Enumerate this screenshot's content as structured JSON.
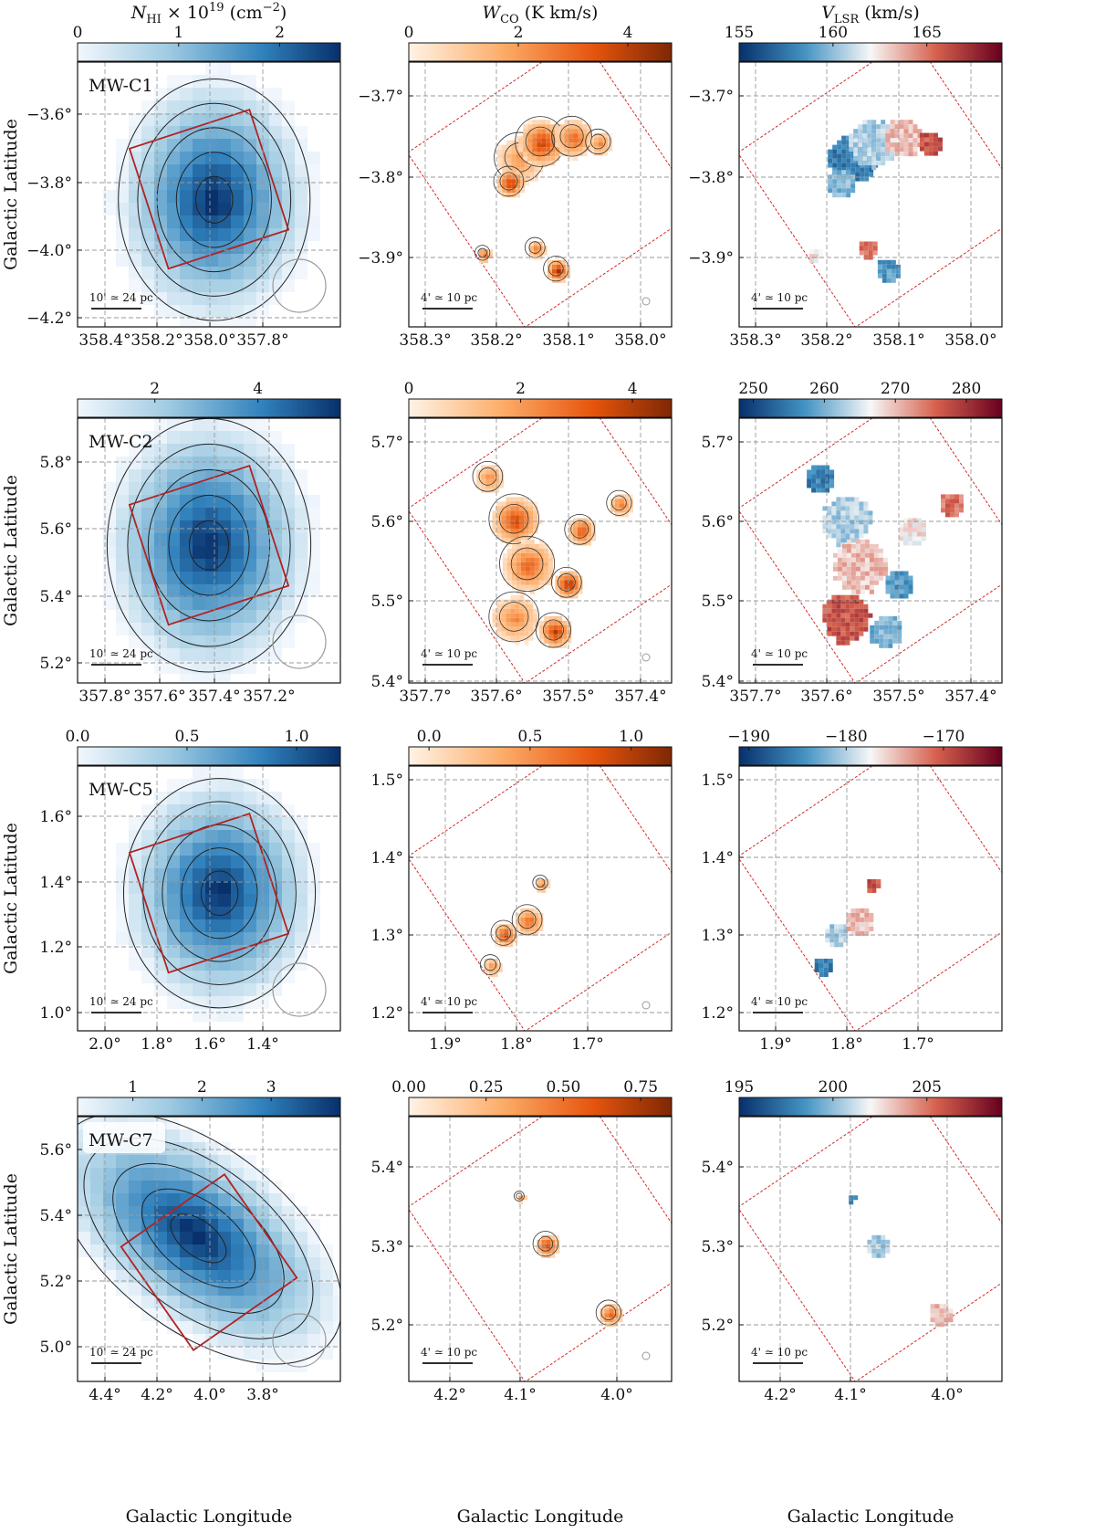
{
  "figure": {
    "colorbar_titles": {
      "hi": "N_HI × 10^19 (cm^-2)",
      "co": "W_CO (K km/s)",
      "vel": "V_LSR (km/s)"
    },
    "axis_labels": {
      "x": "Galactic Longitude",
      "y": "Galactic Latitude"
    },
    "scalebars": {
      "hi": "10' ≃ 24 pc",
      "co": "4' ≃ 10 pc"
    },
    "colors": {
      "hi_low": "#f2f7fd",
      "hi_high": "#08306b",
      "co_low": "#fff3e6",
      "co_high": "#7f2704",
      "vel_low": "#08306b",
      "vel_mid": "#f7f7f7",
      "vel_high": "#67001f",
      "footprint_hi": "#b22222",
      "footprint_dashed": "#d62728",
      "grid": "#9a9a9a",
      "beam": "#9a9a9a"
    }
  },
  "rows": [
    {
      "name": "MW-C1",
      "hi": {
        "cbar_ticks": [
          "0",
          "1",
          "2"
        ],
        "cbar_range": [
          0,
          2.6
        ],
        "cbar_tick_values": [
          0,
          1,
          2
        ],
        "xticks": [
          "358.4°",
          "358.2°",
          "358.0°",
          "357.8°"
        ],
        "yticks": [
          "−3.6°",
          "−3.8°",
          "−4.0°",
          "−4.2°"
        ]
      },
      "co": {
        "cbar_ticks": [
          "0",
          "2",
          "4"
        ],
        "cbar_range": [
          0,
          4.8
        ],
        "cbar_tick_values": [
          0,
          2,
          4
        ],
        "xticks": [
          "358.3°",
          "358.2°",
          "358.1°",
          "358.0°"
        ],
        "yticks": [
          "−3.7°",
          "−3.8°",
          "−3.9°"
        ]
      },
      "vel": {
        "cbar_ticks": [
          "155",
          "160",
          "165"
        ],
        "cbar_range": [
          155,
          169
        ],
        "cbar_tick_values": [
          155,
          160,
          165
        ],
        "xticks": [
          "358.3°",
          "358.2°",
          "358.1°",
          "358.0°"
        ],
        "yticks": [
          "−3.7°",
          "−3.8°",
          "−3.9°"
        ]
      }
    },
    {
      "name": "MW-C2",
      "hi": {
        "cbar_ticks": [
          "2",
          "4"
        ],
        "cbar_range": [
          0.5,
          5.6
        ],
        "cbar_tick_values": [
          2,
          4
        ],
        "xticks": [
          "357.8°",
          "357.6°",
          "357.4°",
          "357.2°"
        ],
        "yticks": [
          "5.8°",
          "5.6°",
          "5.4°",
          "5.2°"
        ]
      },
      "co": {
        "cbar_ticks": [
          "0",
          "2",
          "4"
        ],
        "cbar_range": [
          0,
          4.7
        ],
        "cbar_tick_values": [
          0,
          2,
          4
        ],
        "xticks": [
          "357.7°",
          "357.6°",
          "357.5°",
          "357.4°"
        ],
        "yticks": [
          "5.7°",
          "5.6°",
          "5.5°",
          "5.4°"
        ]
      },
      "vel": {
        "cbar_ticks": [
          "250",
          "260",
          "270",
          "280"
        ],
        "cbar_range": [
          248,
          285
        ],
        "cbar_tick_values": [
          250,
          260,
          270,
          280
        ],
        "xticks": [
          "357.7°",
          "357.6°",
          "357.5°",
          "357.4°"
        ],
        "yticks": [
          "5.7°",
          "5.6°",
          "5.5°",
          "5.4°"
        ]
      }
    },
    {
      "name": "MW-C5",
      "hi": {
        "cbar_ticks": [
          "0.0",
          "0.5",
          "1.0"
        ],
        "cbar_range": [
          0,
          1.2
        ],
        "cbar_tick_values": [
          0,
          0.5,
          1.0
        ],
        "xticks": [
          "2.0°",
          "1.8°",
          "1.6°",
          "1.4°"
        ],
        "yticks": [
          "1.6°",
          "1.4°",
          "1.2°",
          "1.0°"
        ]
      },
      "co": {
        "cbar_ticks": [
          "0.0",
          "0.5",
          "1.0"
        ],
        "cbar_range": [
          -0.1,
          1.2
        ],
        "cbar_tick_values": [
          0,
          0.5,
          1.0
        ],
        "xticks": [
          "1.9°",
          "1.8°",
          "1.7°"
        ],
        "yticks": [
          "1.5°",
          "1.4°",
          "1.3°",
          "1.2°"
        ]
      },
      "vel": {
        "cbar_ticks": [
          "−190",
          "−180",
          "−170"
        ],
        "cbar_range": [
          -191,
          -164
        ],
        "cbar_tick_values": [
          -190,
          -180,
          -170
        ],
        "xticks": [
          "1.9°",
          "1.8°",
          "1.7°"
        ],
        "yticks": [
          "1.5°",
          "1.4°",
          "1.3°",
          "1.2°"
        ]
      }
    },
    {
      "name": "MW-C7",
      "hi": {
        "cbar_ticks": [
          "1",
          "2",
          "3"
        ],
        "cbar_range": [
          0.2,
          4.0
        ],
        "cbar_tick_values": [
          1,
          2,
          3
        ],
        "xticks": [
          "4.4°",
          "4.2°",
          "4.0°",
          "3.8°"
        ],
        "yticks": [
          "5.6°",
          "5.4°",
          "5.2°",
          "5.0°"
        ]
      },
      "co": {
        "cbar_ticks": [
          "0.00",
          "0.25",
          "0.50",
          "0.75"
        ],
        "cbar_range": [
          0,
          0.85
        ],
        "cbar_tick_values": [
          0,
          0.25,
          0.5,
          0.75
        ],
        "xticks": [
          "4.2°",
          "4.1°",
          "4.0°"
        ],
        "yticks": [
          "5.4°",
          "5.3°",
          "5.2°"
        ]
      },
      "vel": {
        "cbar_ticks": [
          "195",
          "200",
          "205"
        ],
        "cbar_range": [
          195,
          209
        ],
        "cbar_tick_values": [
          195,
          200,
          205
        ],
        "xticks": [
          "4.2°",
          "4.1°",
          "4.0°"
        ],
        "yticks": [
          "5.4°",
          "5.3°",
          "5.2°"
        ]
      }
    }
  ]
}
